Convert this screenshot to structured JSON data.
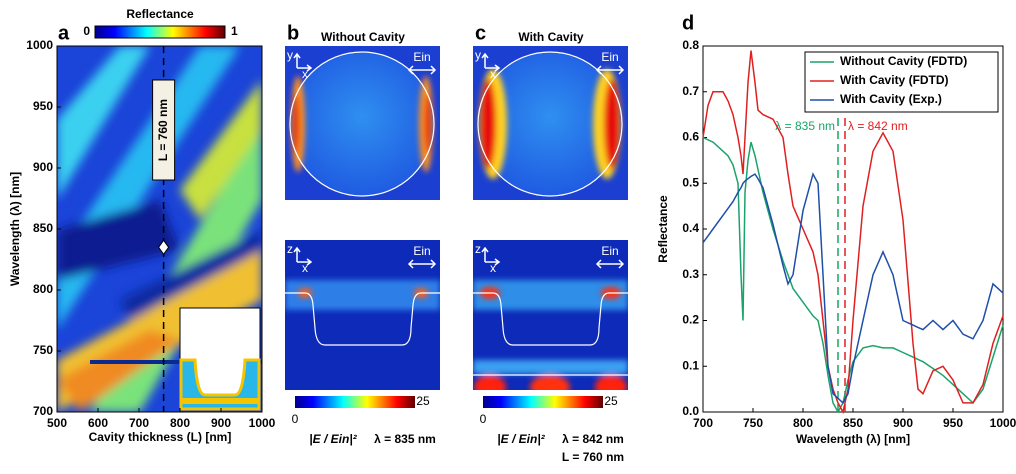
{
  "chart_data": [
    {
      "type": "heatmap",
      "panel": "a",
      "colorbar_title": "Reflectance",
      "colorbar_ticks": [
        0,
        1
      ],
      "xlabel": "Cavity thickness (L) [nm]",
      "ylabel": "Wavelength (λ) [nm]",
      "xlim": [
        500,
        1000
      ],
      "xticks": [
        500,
        600,
        700,
        800,
        900,
        1000
      ],
      "ylim": [
        700,
        1000
      ],
      "yticks": [
        700,
        750,
        800,
        850,
        900,
        950,
        1000
      ],
      "annotation": "L = 760 nm",
      "marker": {
        "x": 760,
        "y": 835
      }
    },
    {
      "type": "field_map",
      "panel": "b",
      "title": "Without Cavity",
      "top_axes": [
        "y",
        "x"
      ],
      "bottom_axes": [
        "z",
        "x"
      ],
      "source_label": "Ein",
      "colorbar_ticks": [
        0,
        25
      ],
      "field_label": "|E / Ein|²",
      "wavelength_label": "λ = 835 nm"
    },
    {
      "type": "field_map",
      "panel": "c",
      "title": "With Cavity",
      "top_axes": [
        "y",
        "x"
      ],
      "bottom_axes": [
        "z",
        "x"
      ],
      "source_label": "Ein",
      "colorbar_ticks": [
        0,
        25
      ],
      "field_label": "|E / Ein|²",
      "wavelength_label": "λ = 842 nm",
      "thickness_label": "L = 760 nm"
    },
    {
      "type": "line",
      "panel": "d",
      "xlabel": "Wavelength (λ)  [nm]",
      "ylabel": "Reflectance",
      "xlim": [
        700,
        1000
      ],
      "xticks": [
        700,
        750,
        800,
        850,
        900,
        950,
        1000
      ],
      "ylim": [
        0,
        0.8
      ],
      "yticks": [
        {
          "value": 0,
          "label": "0.0"
        },
        0.1,
        0.2,
        0.3,
        0.4,
        0.5,
        0.6,
        0.7,
        0.8
      ],
      "legend": "upper right",
      "x": [
        700,
        705,
        710,
        720,
        725,
        730,
        735,
        738,
        740,
        742,
        745,
        748,
        752,
        755,
        760,
        770,
        780,
        785,
        790,
        800,
        810,
        815,
        820,
        825,
        830,
        835,
        840,
        845,
        850,
        860,
        870,
        880,
        890,
        900,
        910,
        915,
        920,
        930,
        940,
        950,
        960,
        970,
        980,
        990,
        1000
      ],
      "series": [
        {
          "name": "Without Cavity (FDTD)",
          "color": "#1aa36a",
          "values": [
            0.6,
            0.595,
            0.59,
            0.57,
            0.56,
            0.54,
            0.5,
            0.3,
            0.2,
            0.48,
            0.55,
            0.59,
            0.56,
            0.53,
            0.48,
            0.4,
            0.33,
            0.3,
            0.27,
            0.24,
            0.21,
            0.2,
            0.15,
            0.08,
            0.02,
            0.0,
            0.02,
            0.07,
            0.11,
            0.14,
            0.145,
            0.14,
            0.14,
            0.13,
            0.12,
            0.115,
            0.11,
            0.095,
            0.08,
            0.06,
            0.04,
            0.02,
            0.05,
            0.12,
            0.19
          ]
        },
        {
          "name": "With Cavity (FDTD)",
          "color": "#e02020",
          "values": [
            0.6,
            0.67,
            0.7,
            0.7,
            0.68,
            0.65,
            0.6,
            0.56,
            0.52,
            0.6,
            0.72,
            0.79,
            0.72,
            0.66,
            0.65,
            0.64,
            0.6,
            0.52,
            0.45,
            0.4,
            0.35,
            0.3,
            0.2,
            0.1,
            0.05,
            0.02,
            0.0,
            0.05,
            0.2,
            0.45,
            0.57,
            0.61,
            0.57,
            0.42,
            0.15,
            0.05,
            0.04,
            0.09,
            0.1,
            0.07,
            0.02,
            0.02,
            0.06,
            0.15,
            0.21
          ]
        },
        {
          "name": "With Cavity (Exp.)",
          "color": "#1f4fa8",
          "values": [
            0.37,
            0.385,
            0.4,
            0.43,
            0.445,
            0.46,
            0.48,
            0.49,
            0.5,
            0.505,
            0.51,
            0.515,
            0.52,
            0.51,
            0.49,
            0.41,
            0.32,
            0.28,
            0.3,
            0.44,
            0.52,
            0.5,
            0.3,
            0.1,
            0.04,
            0.03,
            0.02,
            0.04,
            0.1,
            0.2,
            0.3,
            0.35,
            0.3,
            0.2,
            0.19,
            0.185,
            0.18,
            0.2,
            0.18,
            0.2,
            0.17,
            0.16,
            0.2,
            0.28,
            0.26
          ]
        }
      ],
      "vlines": [
        {
          "x": 835,
          "label": "λ = 835 nm",
          "color": "#1aa36a"
        },
        {
          "x": 842,
          "label": "λ = 842 nm",
          "color": "#e02020"
        }
      ]
    }
  ]
}
